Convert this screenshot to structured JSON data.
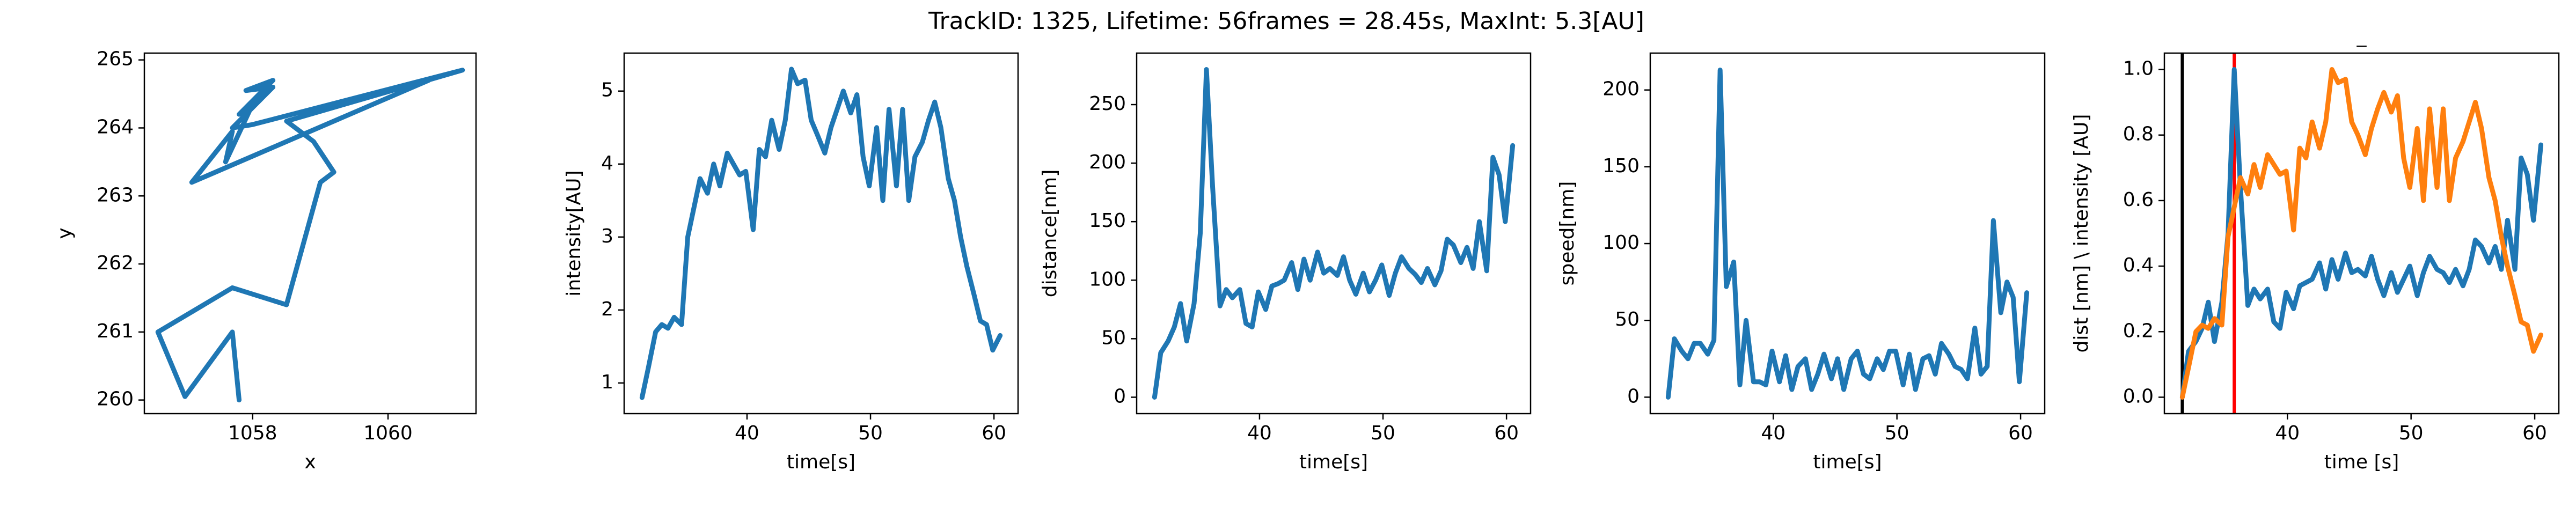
{
  "title": "TrackID: 1325, Lifetime: 56frames = 28.45s, MaxInt: 5.3[AU]",
  "chart_data": [
    {
      "type": "line",
      "xlabel": "x",
      "ylabel": "y",
      "xlim": [
        1056.4,
        1061.3
      ],
      "xticks": [
        1058,
        1060
      ],
      "ylim": [
        259.8,
        265.1
      ],
      "yticks": [
        260,
        261,
        262,
        263,
        264,
        265
      ],
      "x": [
        1057.8,
        1057.7,
        1057.0,
        1056.6,
        1057.7,
        1058.5,
        1059.0,
        1059.2,
        1058.9,
        1058.5,
        1061.1,
        1058.0,
        1057.7,
        1058.3,
        1057.9,
        1058.3,
        1057.8,
        1058.0,
        1057.6,
        1057.7,
        1057.1,
        1060.6
      ],
      "series": [
        {
          "color": "#1f77b4",
          "values": [
            260.0,
            261.0,
            260.05,
            261.0,
            261.65,
            261.4,
            263.2,
            263.35,
            263.8,
            264.1,
            264.85,
            264.05,
            264.0,
            264.6,
            264.55,
            264.7,
            264.2,
            264.35,
            263.5,
            263.95,
            263.2,
            264.7
          ]
        }
      ]
    },
    {
      "type": "line",
      "xlabel": "time[s]",
      "ylabel": "intensity[AU]",
      "xlim": [
        30.05,
        61.95
      ],
      "xticks": [
        40,
        50,
        60
      ],
      "ylim": [
        0.58,
        5.52
      ],
      "yticks": [
        1,
        2,
        3,
        4,
        5
      ],
      "x": [
        31.5,
        32.0,
        32.6,
        33.1,
        33.6,
        34.1,
        34.7,
        35.2,
        35.7,
        36.2,
        36.8,
        37.3,
        37.8,
        38.4,
        38.9,
        39.4,
        39.9,
        40.5,
        41.0,
        41.5,
        42.0,
        42.6,
        43.1,
        43.6,
        44.1,
        44.7,
        45.2,
        45.7,
        46.3,
        46.8,
        47.3,
        47.8,
        48.4,
        48.9,
        49.4,
        49.9,
        50.5,
        51.0,
        51.5,
        52.1,
        52.6,
        53.1,
        53.6,
        54.2,
        54.7,
        55.2,
        55.7,
        56.3,
        56.8,
        57.3,
        57.8,
        58.4,
        58.9,
        59.4,
        59.9,
        60.5
      ],
      "series": [
        {
          "color": "#1f77b4",
          "values": [
            0.8,
            1.2,
            1.7,
            1.8,
            1.75,
            1.9,
            1.8,
            3.0,
            3.4,
            3.8,
            3.6,
            4.0,
            3.7,
            4.15,
            4.0,
            3.85,
            3.9,
            3.1,
            4.2,
            4.1,
            4.6,
            4.2,
            4.6,
            5.3,
            5.1,
            5.15,
            4.6,
            4.4,
            4.15,
            4.5,
            4.75,
            5.0,
            4.7,
            4.95,
            4.1,
            3.7,
            4.5,
            3.5,
            4.75,
            3.7,
            4.75,
            3.5,
            4.1,
            4.3,
            4.6,
            4.85,
            4.5,
            3.8,
            3.5,
            3.0,
            2.6,
            2.2,
            1.85,
            1.8,
            1.45,
            1.65
          ]
        }
      ]
    },
    {
      "type": "line",
      "xlabel": "time[s]",
      "ylabel": "distance[nm]",
      "xlim": [
        30.05,
        61.95
      ],
      "xticks": [
        40,
        50,
        60
      ],
      "ylim": [
        -14,
        294
      ],
      "yticks": [
        0,
        50,
        100,
        150,
        200,
        250
      ],
      "x": [
        31.5,
        32.0,
        32.6,
        33.1,
        33.6,
        34.1,
        34.7,
        35.2,
        35.7,
        36.2,
        36.8,
        37.3,
        37.8,
        38.4,
        38.9,
        39.4,
        39.9,
        40.5,
        41.0,
        41.5,
        42.0,
        42.6,
        43.1,
        43.6,
        44.1,
        44.7,
        45.2,
        45.7,
        46.3,
        46.8,
        47.3,
        47.8,
        48.4,
        48.9,
        49.4,
        49.9,
        50.5,
        51.0,
        51.5,
        52.1,
        52.6,
        53.1,
        53.6,
        54.2,
        54.7,
        55.2,
        55.7,
        56.3,
        56.8,
        57.3,
        57.8,
        58.4,
        58.9,
        59.4,
        59.9,
        60.5
      ],
      "series": [
        {
          "color": "#1f77b4",
          "values": [
            0,
            38,
            48,
            60,
            80,
            48,
            80,
            140,
            280,
            180,
            78,
            92,
            85,
            92,
            63,
            60,
            90,
            75,
            95,
            97,
            100,
            115,
            92,
            118,
            100,
            124,
            106,
            110,
            104,
            120,
            100,
            88,
            106,
            90,
            100,
            113,
            87,
            106,
            120,
            110,
            105,
            98,
            110,
            96,
            108,
            135,
            130,
            115,
            128,
            110,
            150,
            108,
            205,
            190,
            150,
            215
          ]
        }
      ]
    },
    {
      "type": "line",
      "xlabel": "time[s]",
      "ylabel": "speed[nm]",
      "xlim": [
        30.05,
        61.95
      ],
      "xticks": [
        40,
        50,
        60
      ],
      "ylim": [
        -10.7,
        224
      ],
      "yticks": [
        0,
        50,
        100,
        150,
        200
      ],
      "x": [
        31.5,
        32.0,
        32.6,
        33.1,
        33.6,
        34.1,
        34.7,
        35.2,
        35.7,
        36.2,
        36.8,
        37.3,
        37.8,
        38.4,
        38.9,
        39.4,
        39.9,
        40.5,
        41.0,
        41.5,
        42.0,
        42.6,
        43.1,
        43.6,
        44.1,
        44.7,
        45.2,
        45.7,
        46.3,
        46.8,
        47.3,
        47.8,
        48.4,
        48.9,
        49.4,
        49.9,
        50.5,
        51.0,
        51.5,
        52.1,
        52.6,
        53.1,
        53.6,
        54.2,
        54.7,
        55.2,
        55.7,
        56.3,
        56.8,
        57.3,
        57.8,
        58.4,
        58.9,
        59.4,
        59.9,
        60.5
      ],
      "series": [
        {
          "color": "#1f77b4",
          "values": [
            0,
            38,
            30,
            25,
            35,
            35,
            28,
            37,
            213,
            72,
            88,
            8,
            50,
            10,
            10,
            8,
            30,
            10,
            27,
            5,
            20,
            25,
            5,
            15,
            28,
            12,
            25,
            5,
            25,
            30,
            15,
            12,
            25,
            18,
            30,
            30,
            8,
            28,
            5,
            25,
            27,
            15,
            35,
            28,
            20,
            18,
            12,
            45,
            15,
            20,
            115,
            55,
            75,
            65,
            10,
            68
          ]
        }
      ]
    },
    {
      "type": "line",
      "title": "_",
      "xlabel": "time [s]",
      "ylabel": "dist [nm] \\ intensity [AU]",
      "xlim": [
        30.05,
        61.95
      ],
      "xticks": [
        40,
        50,
        60
      ],
      "ylim": [
        -0.05,
        1.05
      ],
      "yticks": [
        {
          "value": 0,
          "label": "0.0"
        },
        0.2,
        0.4,
        0.6,
        0.8,
        {
          "value": 1,
          "label": "1.0"
        }
      ],
      "vlines": [
        {
          "x": 31.5,
          "color": "#000000"
        },
        {
          "x": 35.7,
          "color": "#ff0000"
        }
      ],
      "x": [
        31.5,
        32.0,
        32.6,
        33.1,
        33.6,
        34.1,
        34.7,
        35.2,
        35.7,
        36.2,
        36.8,
        37.3,
        37.8,
        38.4,
        38.9,
        39.4,
        39.9,
        40.5,
        41.0,
        41.5,
        42.0,
        42.6,
        43.1,
        43.6,
        44.1,
        44.7,
        45.2,
        45.7,
        46.3,
        46.8,
        47.3,
        47.8,
        48.4,
        48.9,
        49.4,
        49.9,
        50.5,
        51.0,
        51.5,
        52.1,
        52.6,
        53.1,
        53.6,
        54.2,
        54.7,
        55.2,
        55.7,
        56.3,
        56.8,
        57.3,
        57.8,
        58.4,
        58.9,
        59.4,
        59.9,
        60.5
      ],
      "series": [
        {
          "color": "#1f77b4",
          "values": [
            0,
            0.14,
            0.17,
            0.21,
            0.29,
            0.17,
            0.29,
            0.5,
            1.0,
            0.64,
            0.28,
            0.33,
            0.3,
            0.33,
            0.23,
            0.21,
            0.32,
            0.27,
            0.34,
            0.35,
            0.36,
            0.41,
            0.33,
            0.42,
            0.36,
            0.44,
            0.38,
            0.39,
            0.37,
            0.43,
            0.36,
            0.31,
            0.38,
            0.32,
            0.36,
            0.4,
            0.31,
            0.38,
            0.43,
            0.39,
            0.38,
            0.35,
            0.39,
            0.34,
            0.39,
            0.48,
            0.46,
            0.41,
            0.46,
            0.39,
            0.54,
            0.39,
            0.73,
            0.68,
            0.54,
            0.77
          ]
        },
        {
          "color": "#ff7f0e",
          "values": [
            0,
            0.09,
            0.2,
            0.22,
            0.21,
            0.24,
            0.22,
            0.49,
            0.58,
            0.67,
            0.62,
            0.71,
            0.64,
            0.74,
            0.71,
            0.68,
            0.69,
            0.51,
            0.76,
            0.73,
            0.84,
            0.76,
            0.84,
            1.0,
            0.96,
            0.97,
            0.84,
            0.8,
            0.74,
            0.82,
            0.88,
            0.93,
            0.87,
            0.92,
            0.73,
            0.64,
            0.82,
            0.6,
            0.88,
            0.64,
            0.88,
            0.6,
            0.73,
            0.78,
            0.84,
            0.9,
            0.82,
            0.67,
            0.6,
            0.49,
            0.4,
            0.31,
            0.23,
            0.22,
            0.14,
            0.19
          ]
        }
      ]
    }
  ]
}
